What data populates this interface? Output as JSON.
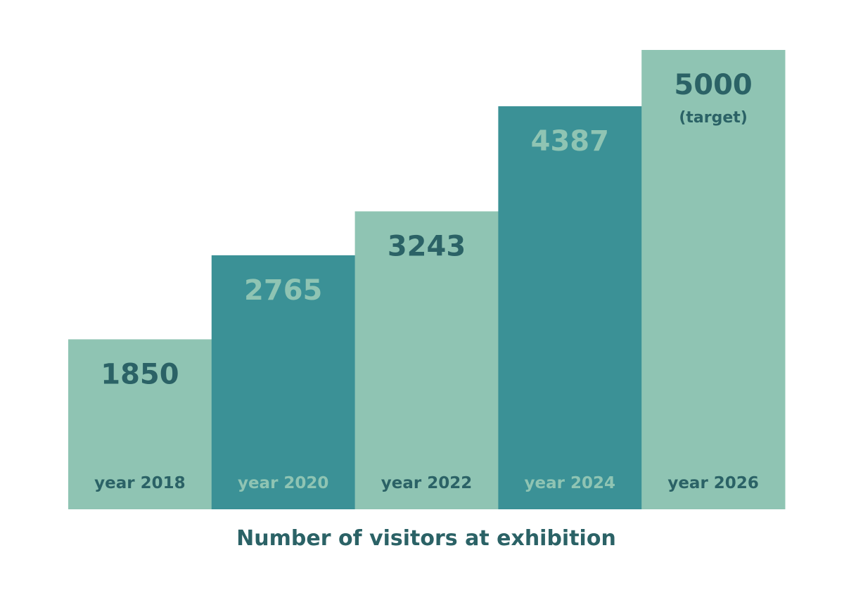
{
  "colors": {
    "light_teal": "#8fc4b3",
    "dark_teal": "#3b9196",
    "dark_text": "#2b6266",
    "light_text": "#8fc4b3",
    "background": "#ffffff"
  },
  "chart_data": {
    "type": "bar",
    "title": "Number of visitors at exhibition",
    "xlabel": "",
    "ylabel": "",
    "categories": [
      "year 2018",
      "year 2020",
      "year 2022",
      "year 2024",
      "year 2026"
    ],
    "values": [
      1850,
      2765,
      3243,
      4387,
      5000
    ],
    "value_labels": [
      "1850",
      "2765",
      "3243",
      "4387",
      "5000"
    ],
    "annotations": [
      "",
      "",
      "",
      "",
      "(target)"
    ],
    "bar_colors": [
      "#8fc4b3",
      "#3b9196",
      "#8fc4b3",
      "#3b9196",
      "#8fc4b3"
    ],
    "label_colors": [
      "#2b6266",
      "#8fc4b3",
      "#2b6266",
      "#8fc4b3",
      "#2b6266"
    ],
    "ylim": [
      0,
      5000
    ],
    "grid": false,
    "legend": "none"
  }
}
